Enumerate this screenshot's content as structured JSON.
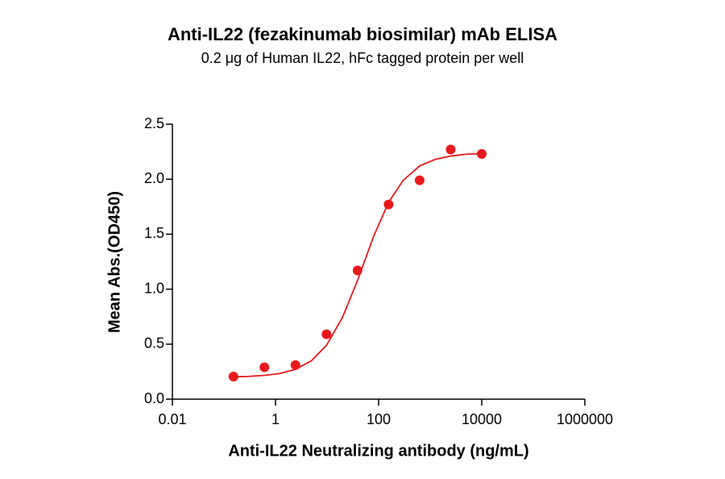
{
  "chart_data": {
    "type": "scatter",
    "title": "Anti-IL22 (fezakinumab biosimilar) mAb ELISA",
    "subtitle": "0.2 μg of Human IL22, hFc tagged protein per well",
    "x_label": "Anti-IL22 Neutralizing antibody (ng/mL)",
    "y_label": "Mean Abs.(OD450)",
    "x_scale": "log",
    "xlim": [
      0.01,
      1000000
    ],
    "xticks": [
      0.01,
      1,
      100,
      10000,
      1000000
    ],
    "ylim": [
      0,
      2.5
    ],
    "yticks": [
      {
        "value": 0,
        "label": "0.0"
      },
      {
        "value": 0.5,
        "label": "0.5"
      },
      {
        "value": 1,
        "label": "1.0"
      },
      {
        "value": 1.5,
        "label": "1.5"
      },
      {
        "value": 2,
        "label": "2.0"
      },
      {
        "value": 2.5,
        "label": "2.5"
      }
    ],
    "grid": false,
    "series": [
      {
        "style": "points",
        "color": "#e8191c",
        "x": [
          0.153,
          0.61,
          2.44,
          9.77,
          39.06,
          156.25,
          625,
          2500,
          10000
        ],
        "values": [
          0.205,
          0.29,
          0.31,
          0.59,
          1.17,
          1.77,
          1.99,
          2.27,
          2.23
        ]
      },
      {
        "style": "line",
        "color": "#e8191c",
        "x": [
          0.153,
          0.3,
          0.61,
          1.2,
          2.44,
          5,
          9.77,
          20,
          39.06,
          80,
          156.25,
          300,
          625,
          1250,
          2500,
          5000,
          10000
        ],
        "values": [
          0.203,
          0.207,
          0.216,
          0.233,
          0.271,
          0.35,
          0.49,
          0.745,
          1.08,
          1.48,
          1.79,
          1.99,
          2.12,
          2.18,
          2.21,
          2.227,
          2.233
        ]
      }
    ]
  }
}
